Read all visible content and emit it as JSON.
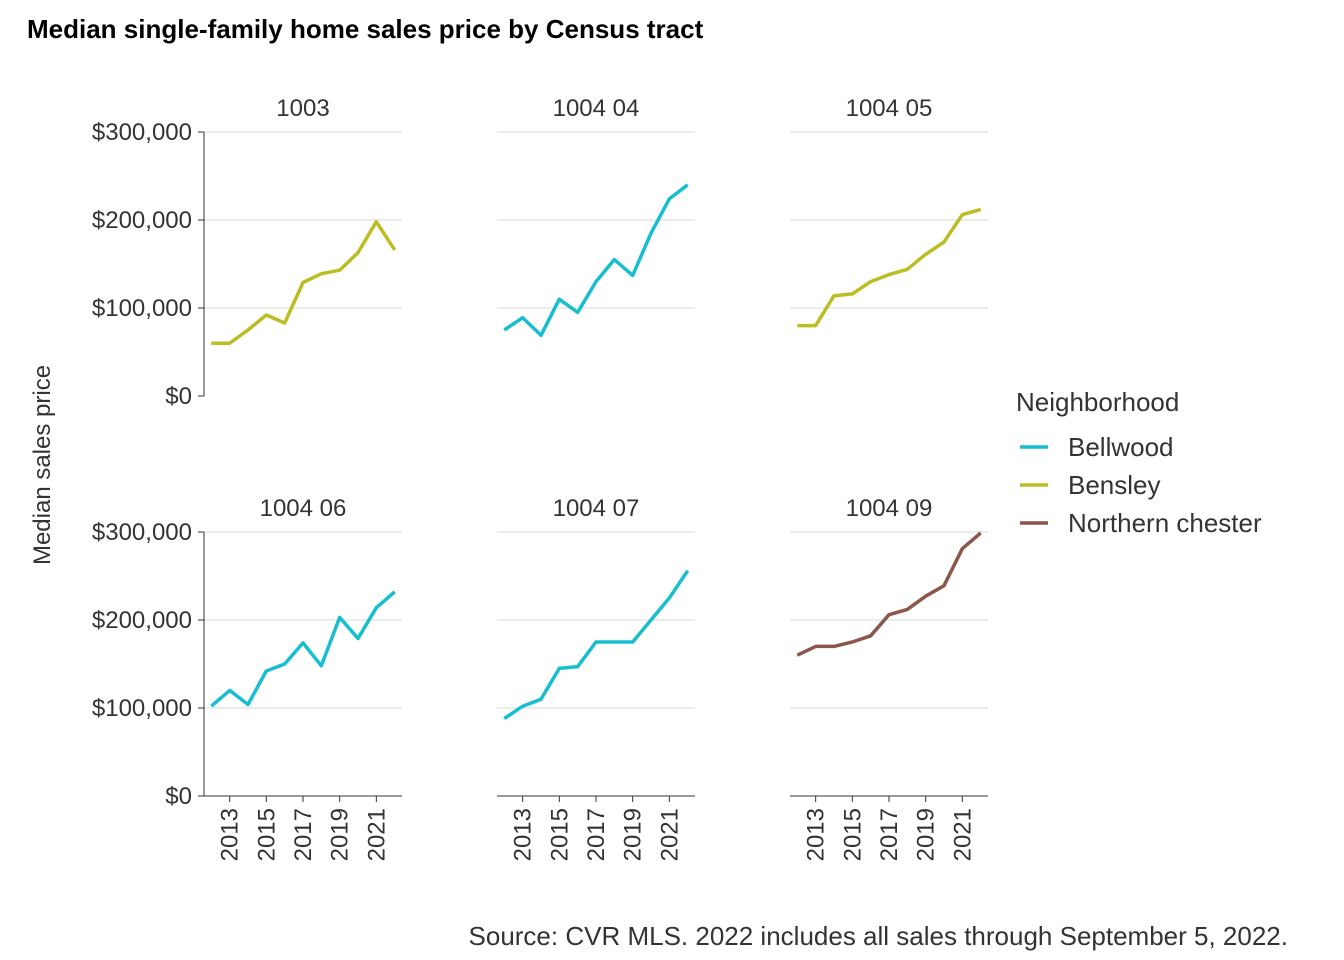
{
  "chart_data": {
    "type": "line",
    "title": "Median single-family home sales price by Census tract",
    "ylabel": "Median sales price",
    "xlabel": "",
    "caption": "Source: CVR MLS. 2022 includes all sales through September 5, 2022.",
    "ylim": [
      0,
      300000
    ],
    "yticks": [
      0,
      100000,
      200000,
      300000
    ],
    "ytick_labels": [
      "$0",
      "$100,000",
      "$200,000",
      "$300,000"
    ],
    "xlim": [
      2011.6,
      2022.4
    ],
    "xticks": [
      2013,
      2015,
      2017,
      2019,
      2021
    ],
    "xtick_labels": [
      "2013",
      "2015",
      "2017",
      "2019",
      "2021"
    ],
    "grid": "horizontal major",
    "legend": {
      "title": "Neighborhood",
      "position": "right",
      "entries": [
        {
          "name": "Bellwood",
          "color": "#17becf"
        },
        {
          "name": "Bensley",
          "color": "#bcbd22"
        },
        {
          "name": "Northern chester",
          "color": "#8c564b"
        }
      ]
    },
    "panels": [
      {
        "tract": "1003",
        "neighborhood": "Bensley",
        "x": [
          2012,
          2013,
          2014,
          2015,
          2016,
          2017,
          2018,
          2019,
          2020,
          2021,
          2022
        ],
        "y": [
          60000,
          60000,
          75000,
          92000,
          83000,
          129000,
          139000,
          143000,
          163000,
          198000,
          166000
        ]
      },
      {
        "tract": "1004 04",
        "neighborhood": "Bellwood",
        "x": [
          2012,
          2013,
          2014,
          2015,
          2016,
          2017,
          2018,
          2019,
          2020,
          2021,
          2022
        ],
        "y": [
          75000,
          89000,
          69000,
          110000,
          95000,
          130000,
          155000,
          137000,
          185000,
          224000,
          240000
        ]
      },
      {
        "tract": "1004 05",
        "neighborhood": "Bensley",
        "x": [
          2012,
          2013,
          2014,
          2015,
          2016,
          2017,
          2018,
          2019,
          2020,
          2021,
          2022
        ],
        "y": [
          80000,
          80000,
          114000,
          116000,
          130000,
          138000,
          144000,
          161000,
          175000,
          206000,
          212000
        ]
      },
      {
        "tract": "1004 06",
        "neighborhood": "Bellwood",
        "x": [
          2012,
          2013,
          2014,
          2015,
          2016,
          2017,
          2018,
          2019,
          2020,
          2021,
          2022
        ],
        "y": [
          102000,
          120000,
          104000,
          142000,
          150000,
          174000,
          148000,
          203000,
          179000,
          214000,
          232000
        ]
      },
      {
        "tract": "1004 07",
        "neighborhood": "Bellwood",
        "x": [
          2012,
          2013,
          2014,
          2015,
          2016,
          2017,
          2018,
          2019,
          2020,
          2021,
          2022
        ],
        "y": [
          88000,
          102000,
          110000,
          145000,
          147000,
          175000,
          175000,
          175000,
          200000,
          225000,
          256000
        ]
      },
      {
        "tract": "1004 09",
        "neighborhood": "Northern chester",
        "x": [
          2012,
          2013,
          2014,
          2015,
          2016,
          2017,
          2018,
          2019,
          2020,
          2021,
          2022
        ],
        "y": [
          160000,
          170000,
          170000,
          175000,
          182000,
          206000,
          212000,
          227000,
          239000,
          281000,
          299000
        ]
      }
    ]
  }
}
